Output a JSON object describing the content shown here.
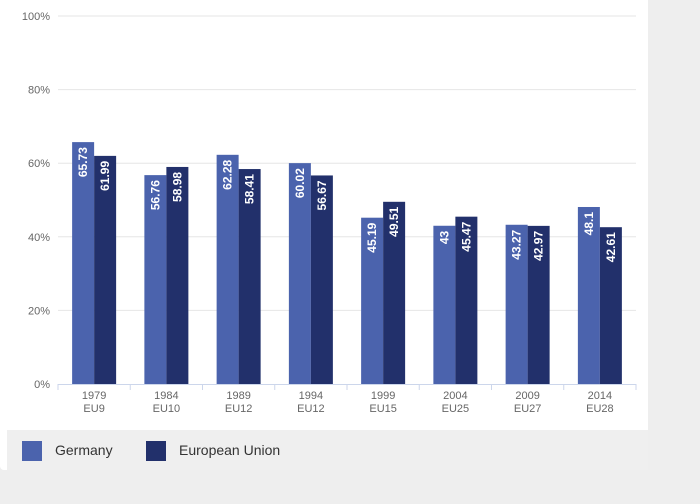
{
  "chart_data": {
    "type": "bar",
    "title": "",
    "xlabel": "",
    "ylabel": "",
    "ylim": [
      0,
      100
    ],
    "y_ticks": [
      "0%",
      "20%",
      "40%",
      "60%",
      "80%",
      "100%"
    ],
    "y_tick_values": [
      0,
      20,
      40,
      60,
      80,
      100
    ],
    "categories": [
      "1979",
      "1984",
      "1989",
      "1994",
      "1999",
      "2004",
      "2009",
      "2014"
    ],
    "category_sublabels": [
      "EU9",
      "EU10",
      "EU12",
      "EU12",
      "EU15",
      "EU25",
      "EU27",
      "EU28"
    ],
    "series": [
      {
        "name": "Germany",
        "color": "#4b63ad",
        "values": [
          65.73,
          56.76,
          62.28,
          60.02,
          45.19,
          43,
          43.27,
          48.1
        ],
        "labels": [
          "65.73",
          "56.76",
          "62.28",
          "60.02",
          "45.19",
          "43",
          "43.27",
          "48.1"
        ]
      },
      {
        "name": "European Union",
        "color": "#22306b",
        "values": [
          61.99,
          58.98,
          58.41,
          56.67,
          49.51,
          45.47,
          42.97,
          42.61
        ],
        "labels": [
          "61.99",
          "58.98",
          "58.41",
          "56.67",
          "49.51",
          "45.47",
          "42.97",
          "42.61"
        ]
      }
    ],
    "grid": true,
    "legend_position": "bottom-left"
  }
}
